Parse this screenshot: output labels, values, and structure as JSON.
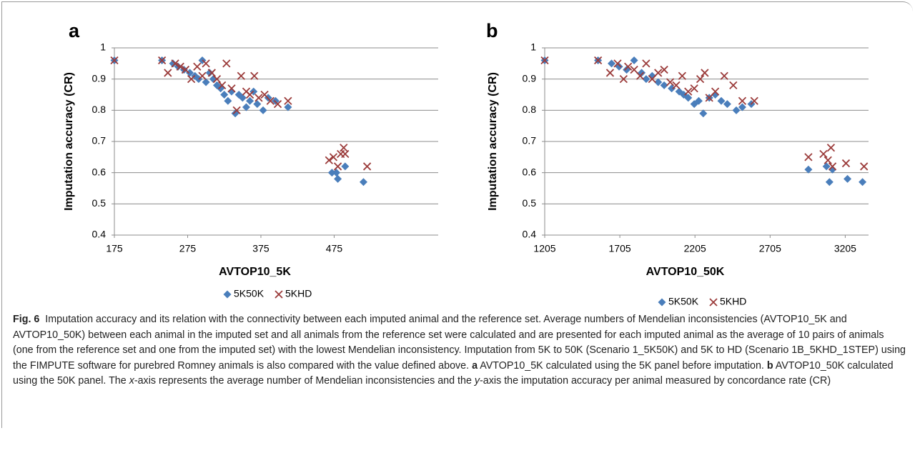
{
  "chart_data": [
    {
      "type": "scatter",
      "panel": "a",
      "xlabel": "AVTOP10_5K",
      "ylabel": "Imputation accuracy (CR)",
      "xlim": [
        175,
        617
      ],
      "xticks": [
        175,
        275,
        375,
        475
      ],
      "ylim": [
        0.4,
        1
      ],
      "yticks": [
        0.4,
        0.5,
        0.6,
        0.7,
        0.8,
        0.9,
        1
      ],
      "grid": true,
      "series": [
        {
          "name": "5K50K",
          "color": "#4a7ebb",
          "marker": "diamond",
          "x": [
            175,
            240,
            255,
            262,
            270,
            278,
            285,
            290,
            295,
            300,
            305,
            310,
            315,
            320,
            325,
            330,
            335,
            340,
            345,
            350,
            355,
            360,
            365,
            370,
            378,
            385,
            395,
            412,
            472,
            478,
            480,
            490,
            515
          ],
          "values": [
            0.96,
            0.96,
            0.95,
            0.94,
            0.93,
            0.92,
            0.91,
            0.9,
            0.96,
            0.89,
            0.92,
            0.9,
            0.88,
            0.87,
            0.85,
            0.83,
            0.86,
            0.79,
            0.85,
            0.84,
            0.81,
            0.83,
            0.86,
            0.82,
            0.8,
            0.84,
            0.83,
            0.81,
            0.6,
            0.6,
            0.58,
            0.62,
            0.57
          ]
        },
        {
          "name": "5KHD",
          "color": "#9b3b3a",
          "marker": "x",
          "x": [
            175,
            240,
            248,
            258,
            265,
            272,
            280,
            288,
            295,
            300,
            308,
            315,
            322,
            328,
            335,
            342,
            348,
            355,
            360,
            366,
            372,
            380,
            388,
            398,
            412,
            468,
            474,
            480,
            484,
            488,
            490,
            520
          ],
          "values": [
            0.96,
            0.96,
            0.92,
            0.95,
            0.94,
            0.93,
            0.9,
            0.94,
            0.91,
            0.95,
            0.92,
            0.9,
            0.88,
            0.95,
            0.87,
            0.8,
            0.91,
            0.86,
            0.85,
            0.91,
            0.84,
            0.85,
            0.83,
            0.82,
            0.83,
            0.64,
            0.65,
            0.62,
            0.66,
            0.68,
            0.66,
            0.62
          ]
        }
      ]
    },
    {
      "type": "scatter",
      "panel": "b",
      "xlabel": "AVTOP10_50K",
      "ylabel": "Imputation accuracy (CR)",
      "xlim": [
        1205,
        3360
      ],
      "xticks": [
        1205,
        1705,
        2205,
        2705,
        3205
      ],
      "ylim": [
        0.4,
        1
      ],
      "yticks": [
        0.4,
        0.5,
        0.6,
        0.7,
        0.8,
        0.9,
        1
      ],
      "grid": true,
      "series": [
        {
          "name": "5K50K",
          "color": "#4a7ebb",
          "marker": "diamond",
          "x": [
            1205,
            1560,
            1650,
            1700,
            1750,
            1800,
            1850,
            1880,
            1920,
            1960,
            2000,
            2050,
            2100,
            2130,
            2160,
            2200,
            2230,
            2260,
            2300,
            2340,
            2380,
            2420,
            2480,
            2520,
            2580,
            2960,
            3080,
            3100,
            3120,
            3220,
            3320
          ],
          "values": [
            0.96,
            0.96,
            0.95,
            0.94,
            0.93,
            0.96,
            0.92,
            0.9,
            0.91,
            0.89,
            0.88,
            0.87,
            0.86,
            0.85,
            0.84,
            0.82,
            0.83,
            0.79,
            0.84,
            0.85,
            0.83,
            0.82,
            0.8,
            0.81,
            0.82,
            0.61,
            0.62,
            0.57,
            0.61,
            0.58,
            0.57
          ]
        },
        {
          "name": "5KHD",
          "color": "#9b3b3a",
          "marker": "x",
          "x": [
            1205,
            1560,
            1640,
            1690,
            1730,
            1760,
            1800,
            1840,
            1880,
            1920,
            1960,
            2000,
            2040,
            2080,
            2120,
            2160,
            2200,
            2240,
            2270,
            2300,
            2340,
            2400,
            2460,
            2520,
            2600,
            2960,
            3060,
            3090,
            3110,
            3120,
            3210,
            3330
          ],
          "values": [
            0.96,
            0.96,
            0.92,
            0.95,
            0.9,
            0.94,
            0.93,
            0.91,
            0.95,
            0.9,
            0.92,
            0.93,
            0.89,
            0.88,
            0.91,
            0.86,
            0.87,
            0.9,
            0.92,
            0.84,
            0.86,
            0.91,
            0.88,
            0.83,
            0.83,
            0.65,
            0.66,
            0.64,
            0.68,
            0.62,
            0.63,
            0.62
          ]
        }
      ]
    }
  ],
  "caption": {
    "label": "Fig. 6",
    "segments": [
      "Imputation accuracy and its relation with the connectivity between each imputed animal and the reference set. Average numbers of Mendelian inconsistencies (AVTOP10_5K and AVTOP10_50K) between each animal in the imputed set and all animals from the reference set were calculated and are presented for each imputed animal as the average of 10 pairs of animals (one from the reference set and one from the imputed set) with the lowest Mendelian inconsistency. Imputation from 5K to 50K (Scenario 1_5K50K) and 5K to HD (Scenario 1B_5KHD_1STEP) using the FIMPUTE software for purebred Romney animals is also compared with the value defined above. ",
      "a",
      " AVTOP10_5K calculated using the 5K panel before imputation. ",
      "b",
      " AVTOP10_50K calculated using the 50K panel. The ",
      "x",
      "-axis represents the average number of Mendelian inconsistencies and the ",
      "y",
      "-axis the imputation accuracy per animal measured by concordance rate (CR)"
    ]
  }
}
